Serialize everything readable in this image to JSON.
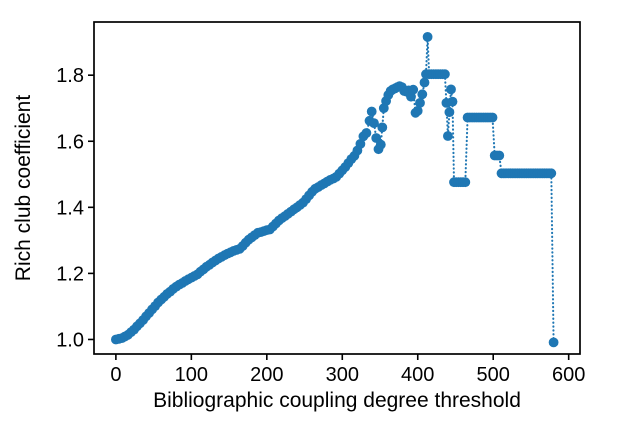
{
  "chart_data": {
    "type": "scatter",
    "title": "",
    "xlabel": "Bibliographic coupling degree threshold",
    "ylabel": "Rich club coefficient",
    "marker": "circle",
    "line_style": "dotted",
    "series_color": "#1f77b4",
    "axis_color": "#000000",
    "background_color": "#ffffff",
    "grid": false,
    "legend_position": "none",
    "xlim": [
      -29,
      615
    ],
    "ylim": [
      0.956,
      1.961
    ],
    "xticks": {
      "values": [
        0,
        100,
        200,
        300,
        400,
        500,
        600
      ],
      "labels": [
        "0",
        "100",
        "200",
        "300",
        "400",
        "500",
        "600"
      ]
    },
    "yticks": {
      "values": [
        1.0,
        1.2,
        1.4,
        1.6,
        1.8
      ],
      "labels": [
        "1.0",
        "1.2",
        "1.4",
        "1.6",
        "1.8"
      ]
    },
    "points": [
      [
        0,
        1.0
      ],
      [
        4,
        1.002
      ],
      [
        8,
        1.004
      ],
      [
        12,
        1.009
      ],
      [
        16,
        1.014
      ],
      [
        20,
        1.022
      ],
      [
        24,
        1.03
      ],
      [
        28,
        1.04
      ],
      [
        32,
        1.049
      ],
      [
        36,
        1.059
      ],
      [
        40,
        1.07
      ],
      [
        44,
        1.08
      ],
      [
        48,
        1.091
      ],
      [
        52,
        1.101
      ],
      [
        56,
        1.112
      ],
      [
        60,
        1.121
      ],
      [
        64,
        1.129
      ],
      [
        68,
        1.138
      ],
      [
        72,
        1.145
      ],
      [
        76,
        1.153
      ],
      [
        80,
        1.16
      ],
      [
        84,
        1.166
      ],
      [
        88,
        1.171
      ],
      [
        92,
        1.177
      ],
      [
        96,
        1.182
      ],
      [
        100,
        1.187
      ],
      [
        104,
        1.192
      ],
      [
        108,
        1.197
      ],
      [
        112,
        1.205
      ],
      [
        116,
        1.212
      ],
      [
        120,
        1.22
      ],
      [
        124,
        1.226
      ],
      [
        128,
        1.233
      ],
      [
        132,
        1.239
      ],
      [
        136,
        1.245
      ],
      [
        140,
        1.25
      ],
      [
        144,
        1.255
      ],
      [
        148,
        1.26
      ],
      [
        152,
        1.264
      ],
      [
        156,
        1.268
      ],
      [
        160,
        1.271
      ],
      [
        164,
        1.274
      ],
      [
        168,
        1.283
      ],
      [
        172,
        1.293
      ],
      [
        176,
        1.302
      ],
      [
        180,
        1.309
      ],
      [
        184,
        1.316
      ],
      [
        188,
        1.323
      ],
      [
        192,
        1.325
      ],
      [
        196,
        1.328
      ],
      [
        200,
        1.331
      ],
      [
        204,
        1.333
      ],
      [
        208,
        1.342
      ],
      [
        212,
        1.351
      ],
      [
        216,
        1.36
      ],
      [
        220,
        1.367
      ],
      [
        224,
        1.373
      ],
      [
        228,
        1.38
      ],
      [
        232,
        1.387
      ],
      [
        236,
        1.394
      ],
      [
        240,
        1.4
      ],
      [
        244,
        1.407
      ],
      [
        248,
        1.414
      ],
      [
        252,
        1.425
      ],
      [
        256,
        1.436
      ],
      [
        260,
        1.447
      ],
      [
        264,
        1.456
      ],
      [
        268,
        1.461
      ],
      [
        272,
        1.467
      ],
      [
        276,
        1.472
      ],
      [
        280,
        1.478
      ],
      [
        284,
        1.483
      ],
      [
        288,
        1.487
      ],
      [
        292,
        1.492
      ],
      [
        296,
        1.502
      ],
      [
        300,
        1.512
      ],
      [
        304,
        1.522
      ],
      [
        308,
        1.534
      ],
      [
        312,
        1.546
      ],
      [
        316,
        1.556
      ],
      [
        320,
        1.572
      ],
      [
        324,
        1.592
      ],
      [
        328,
        1.615
      ],
      [
        332,
        1.625
      ],
      [
        336,
        1.662
      ],
      [
        339,
        1.69
      ],
      [
        342,
        1.655
      ],
      [
        345,
        1.61
      ],
      [
        348,
        1.576
      ],
      [
        351,
        1.59
      ],
      [
        353,
        1.642
      ],
      [
        355,
        1.7
      ],
      [
        358,
        1.722
      ],
      [
        361,
        1.74
      ],
      [
        364,
        1.752
      ],
      [
        367,
        1.757
      ],
      [
        370,
        1.76
      ],
      [
        373,
        1.764
      ],
      [
        376,
        1.767
      ],
      [
        379,
        1.764
      ],
      [
        382,
        1.752
      ],
      [
        385,
        1.75
      ],
      [
        388,
        1.754
      ],
      [
        391,
        1.735
      ],
      [
        394,
        1.756
      ],
      [
        397,
        1.686
      ],
      [
        400,
        1.692
      ],
      [
        403,
        1.716
      ],
      [
        406,
        1.742
      ],
      [
        409,
        1.778
      ],
      [
        411,
        1.803
      ],
      [
        413,
        1.916
      ],
      [
        415,
        1.803
      ],
      [
        418,
        1.803
      ],
      [
        421,
        1.803
      ],
      [
        424,
        1.803
      ],
      [
        427,
        1.803
      ],
      [
        430,
        1.803
      ],
      [
        433,
        1.803
      ],
      [
        436,
        1.803
      ],
      [
        438,
        1.716
      ],
      [
        440,
        1.616
      ],
      [
        442,
        1.688
      ],
      [
        444,
        1.757
      ],
      [
        446,
        1.72
      ],
      [
        448,
        1.476
      ],
      [
        451,
        1.476
      ],
      [
        454,
        1.476
      ],
      [
        457,
        1.476
      ],
      [
        460,
        1.476
      ],
      [
        463,
        1.476
      ],
      [
        466,
        1.672
      ],
      [
        469,
        1.672
      ],
      [
        472,
        1.672
      ],
      [
        475,
        1.672
      ],
      [
        478,
        1.672
      ],
      [
        481,
        1.672
      ],
      [
        484,
        1.672
      ],
      [
        487,
        1.672
      ],
      [
        490,
        1.672
      ],
      [
        493,
        1.672
      ],
      [
        496,
        1.672
      ],
      [
        499,
        1.672
      ],
      [
        502,
        1.557
      ],
      [
        505,
        1.557
      ],
      [
        508,
        1.557
      ],
      [
        511,
        1.503
      ],
      [
        514,
        1.503
      ],
      [
        517,
        1.503
      ],
      [
        520,
        1.503
      ],
      [
        523,
        1.503
      ],
      [
        526,
        1.503
      ],
      [
        529,
        1.503
      ],
      [
        532,
        1.503
      ],
      [
        535,
        1.503
      ],
      [
        538,
        1.503
      ],
      [
        541,
        1.503
      ],
      [
        544,
        1.503
      ],
      [
        547,
        1.503
      ],
      [
        550,
        1.503
      ],
      [
        553,
        1.503
      ],
      [
        556,
        1.503
      ],
      [
        559,
        1.503
      ],
      [
        562,
        1.503
      ],
      [
        565,
        1.503
      ],
      [
        568,
        1.503
      ],
      [
        571,
        1.503
      ],
      [
        574,
        1.503
      ],
      [
        577,
        1.503
      ],
      [
        580,
        0.991
      ]
    ]
  }
}
